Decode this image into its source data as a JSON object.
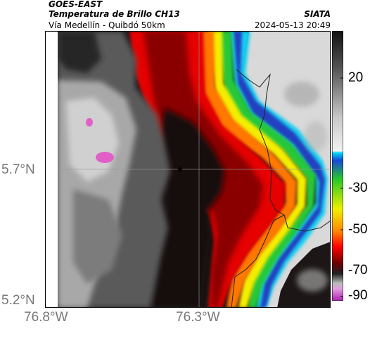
{
  "header": {
    "satellite": "GOES-EAST",
    "product": "Temperatura de Brillo CH13",
    "region": "Vía Medellín - Quibdó 50km",
    "organization": "SIATA",
    "datetime": "2024-05-13 20:49"
  },
  "axes": {
    "lat_labels": [
      "5.7°N",
      "5.2°N"
    ],
    "lon_labels": [
      "76.8°W",
      "76.3°W"
    ]
  },
  "colorbar": {
    "tick_labels": [
      "20",
      "-30",
      "-50",
      "-70",
      "-90"
    ],
    "colors": {
      "warm_gray_top": "#1c1c1c",
      "cyan": "#00c8f0",
      "green": "#28c828",
      "yellow": "#f0f000",
      "orange": "#ff8c00",
      "red": "#ff0000",
      "dark_red": "#8b0000",
      "magenta": "#e040c0"
    }
  },
  "map": {
    "marker": "star-icon",
    "colors": {
      "land_gray": "#9a9a9a",
      "cloud_black": "#1a1a1a",
      "cloud_red": "#e80000",
      "cloud_orange": "#ff7a00",
      "cloud_yellow": "#f2f200",
      "cloud_green": "#22c83a",
      "cloud_cyan": "#18d6f0",
      "cloud_blue": "#1838c8",
      "clear_white": "#e8e8e8",
      "cold_pink": "#e060c8"
    }
  }
}
